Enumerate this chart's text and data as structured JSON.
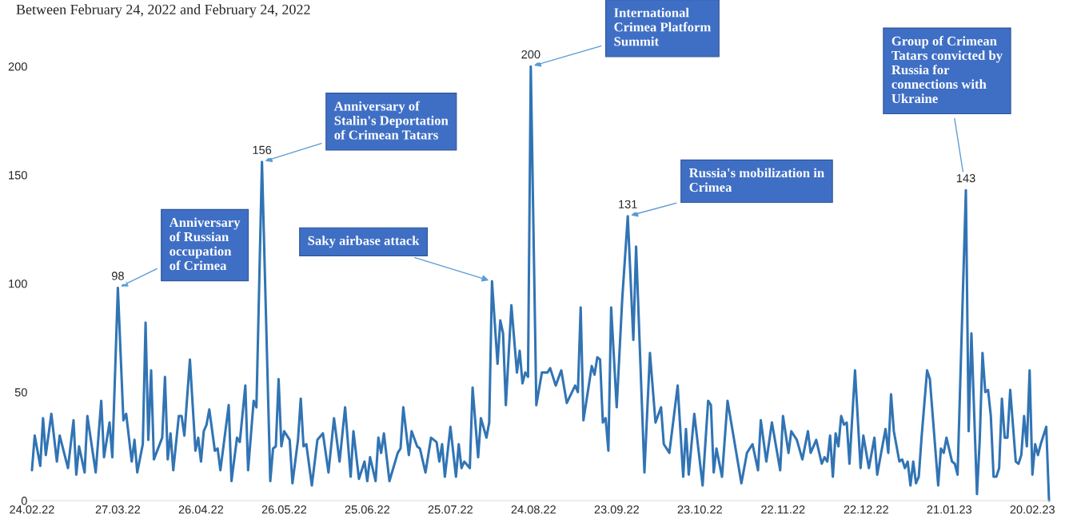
{
  "chart_data": {
    "type": "line",
    "title": "Between February 24, 2022 and February 24, 2022",
    "x": [
      "2022-02-24",
      "2022-02-25",
      "2022-02-27",
      "2022-02-28",
      "2022-03-01",
      "2022-03-03",
      "2022-03-05",
      "2022-03-06",
      "2022-03-09",
      "2022-03-11",
      "2022-03-12",
      "2022-03-13",
      "2022-03-15",
      "2022-03-16",
      "2022-03-19",
      "2022-03-21",
      "2022-03-22",
      "2022-03-24",
      "2022-03-25",
      "2022-03-27",
      "2022-03-29",
      "2022-03-30",
      "2022-04-01",
      "2022-04-02",
      "2022-04-03",
      "2022-04-05",
      "2022-04-06",
      "2022-04-07",
      "2022-04-08",
      "2022-04-09",
      "2022-04-12",
      "2022-04-13",
      "2022-04-14",
      "2022-04-15",
      "2022-04-16",
      "2022-04-18",
      "2022-04-19",
      "2022-04-20",
      "2022-04-22",
      "2022-04-24",
      "2022-04-25",
      "2022-04-26",
      "2022-04-27",
      "2022-04-28",
      "2022-04-29",
      "2022-05-01",
      "2022-05-02",
      "2022-05-03",
      "2022-05-06",
      "2022-05-07",
      "2022-05-09",
      "2022-05-10",
      "2022-05-12",
      "2022-05-13",
      "2022-05-15",
      "2022-05-16",
      "2022-05-18",
      "2022-05-21",
      "2022-05-22",
      "2022-05-23",
      "2022-05-24",
      "2022-05-25",
      "2022-05-26",
      "2022-05-28",
      "2022-05-29",
      "2022-05-31",
      "2022-06-01",
      "2022-06-02",
      "2022-06-03",
      "2022-06-05",
      "2022-06-07",
      "2022-06-09",
      "2022-06-11",
      "2022-06-13",
      "2022-06-15",
      "2022-06-17",
      "2022-06-19",
      "2022-06-20",
      "2022-06-22",
      "2022-06-24",
      "2022-06-25",
      "2022-06-26",
      "2022-06-28",
      "2022-06-29",
      "2022-06-30",
      "2022-07-01",
      "2022-07-03",
      "2022-07-06",
      "2022-07-07",
      "2022-07-08",
      "2022-07-10",
      "2022-07-11",
      "2022-07-13",
      "2022-07-14",
      "2022-07-16",
      "2022-07-18",
      "2022-07-20",
      "2022-07-21",
      "2022-07-22",
      "2022-07-23",
      "2022-07-25",
      "2022-07-27",
      "2022-07-28",
      "2022-07-29",
      "2022-07-30",
      "2022-08-01",
      "2022-08-02",
      "2022-08-04",
      "2022-08-05",
      "2022-08-07",
      "2022-08-08",
      "2022-08-09",
      "2022-08-11",
      "2022-08-12",
      "2022-08-13",
      "2022-08-14",
      "2022-08-16",
      "2022-08-18",
      "2022-08-19",
      "2022-08-20",
      "2022-08-21",
      "2022-08-22",
      "2022-08-23",
      "2022-08-25",
      "2022-08-27",
      "2022-08-29",
      "2022-08-30",
      "2022-09-01",
      "2022-09-03",
      "2022-09-05",
      "2022-09-08",
      "2022-09-09",
      "2022-09-10",
      "2022-09-11",
      "2022-09-14",
      "2022-09-15",
      "2022-09-16",
      "2022-09-17",
      "2022-09-18",
      "2022-09-19",
      "2022-09-20",
      "2022-09-21",
      "2022-09-23",
      "2022-09-25",
      "2022-09-27",
      "2022-09-29",
      "2022-09-30",
      "2022-10-03",
      "2022-10-05",
      "2022-10-07",
      "2022-10-09",
      "2022-10-10",
      "2022-10-12",
      "2022-10-15",
      "2022-10-17",
      "2022-10-18",
      "2022-10-19",
      "2022-10-21",
      "2022-10-24",
      "2022-10-26",
      "2022-10-27",
      "2022-10-28",
      "2022-10-29",
      "2022-10-31",
      "2022-11-02",
      "2022-11-07",
      "2022-11-09",
      "2022-11-11",
      "2022-11-13",
      "2022-11-14",
      "2022-11-16",
      "2022-11-18",
      "2022-11-21",
      "2022-11-22",
      "2022-11-24",
      "2022-11-25",
      "2022-11-27",
      "2022-11-29",
      "2022-12-01",
      "2022-12-02",
      "2022-12-04",
      "2022-12-06",
      "2022-12-07",
      "2022-12-08",
      "2022-12-09",
      "2022-12-10",
      "2022-12-11",
      "2022-12-12",
      "2022-12-13",
      "2022-12-14",
      "2022-12-15",
      "2022-12-16",
      "2022-12-18",
      "2022-12-20",
      "2022-12-21",
      "2022-12-23",
      "2022-12-25",
      "2022-12-26",
      "2022-12-29",
      "2022-12-30",
      "2022-12-31",
      "2023-01-01",
      "2023-01-03",
      "2023-01-04",
      "2023-01-05",
      "2023-01-06",
      "2023-01-07",
      "2023-01-08",
      "2023-01-09",
      "2023-01-10",
      "2023-01-11",
      "2023-01-13",
      "2023-01-14",
      "2023-01-17",
      "2023-01-18",
      "2023-01-19",
      "2023-01-20",
      "2023-01-22",
      "2023-01-23",
      "2023-01-24",
      "2023-01-27",
      "2023-01-28",
      "2023-01-29",
      "2023-01-31",
      "2023-02-01",
      "2023-02-02",
      "2023-02-03",
      "2023-02-04",
      "2023-02-05",
      "2023-02-06",
      "2023-02-07",
      "2023-02-08",
      "2023-02-09",
      "2023-02-10",
      "2023-02-11",
      "2023-02-12",
      "2023-02-14",
      "2023-02-15",
      "2023-02-16",
      "2023-02-17",
      "2023-02-18",
      "2023-02-19",
      "2023-02-20",
      "2023-02-21",
      "2023-02-22",
      "2023-02-23",
      "2023-02-25",
      "2023-02-26"
    ],
    "series": [
      {
        "color": "#3174b4",
        "values": [
          14,
          30,
          16,
          38,
          21,
          40,
          18,
          30,
          15,
          37,
          12,
          25,
          13,
          39,
          13,
          46,
          20,
          36,
          20,
          98,
          37,
          40,
          18,
          28,
          13,
          26,
          82,
          28,
          60,
          19,
          29,
          57,
          19,
          31,
          14,
          39,
          39,
          30,
          65,
          23,
          29,
          18,
          32,
          35,
          42,
          23,
          24,
          14,
          44,
          9,
          29,
          27,
          53,
          14,
          46,
          43,
          156,
          9,
          24,
          25,
          56,
          25,
          32,
          28,
          8,
          28,
          47,
          25,
          26,
          7,
          28,
          31,
          13,
          38,
          18,
          43,
          11,
          32,
          10,
          18,
          9,
          20,
          9,
          29,
          22,
          31,
          9,
          22,
          24,
          43,
          21,
          32,
          25,
          24,
          13,
          29,
          27,
          18,
          26,
          11,
          34,
          11,
          26,
          15,
          18,
          15,
          52,
          20,
          38,
          29,
          36,
          101,
          63,
          83,
          77,
          44,
          90,
          59,
          69,
          54,
          59,
          57,
          200,
          44,
          59,
          59,
          61,
          53,
          60,
          45,
          53,
          50,
          89,
          37,
          62,
          58,
          66,
          65,
          36,
          38,
          23,
          89,
          43,
          93,
          131,
          74,
          117,
          13,
          68,
          36,
          43,
          26,
          22,
          53,
          11,
          33,
          12,
          40,
          7,
          46,
          44,
          13,
          24,
          11,
          46,
          8,
          22,
          26,
          14,
          37,
          18,
          36,
          14,
          39,
          22,
          32,
          28,
          19,
          32,
          22,
          28,
          17,
          20,
          18,
          30,
          11,
          31,
          25,
          39,
          35,
          36,
          17,
          60,
          15,
          30,
          15,
          29,
          12,
          33,
          22,
          49,
          32,
          18,
          19,
          15,
          18,
          7,
          18,
          8,
          11,
          29,
          60,
          56,
          7,
          24,
          22,
          29,
          18,
          17,
          12,
          143,
          32,
          77,
          3,
          28,
          68,
          50,
          51,
          39,
          11,
          11,
          15,
          47,
          29,
          29,
          51,
          18,
          17,
          21,
          39,
          25,
          60,
          12,
          26,
          21,
          26,
          34,
          0
        ]
      }
    ],
    "xticks": [
      {
        "value": "2022-02-24",
        "label": "24.02.22"
      },
      {
        "value": "2022-03-27",
        "label": "27.03.22"
      },
      {
        "value": "2022-04-26",
        "label": "26.04.22"
      },
      {
        "value": "2022-05-26",
        "label": "26.05.22"
      },
      {
        "value": "2022-06-25",
        "label": "25.06.22"
      },
      {
        "value": "2022-07-25",
        "label": "25.07.22"
      },
      {
        "value": "2022-08-24",
        "label": "24.08.22"
      },
      {
        "value": "2022-09-23",
        "label": "23.09.22"
      },
      {
        "value": "2022-10-23",
        "label": "23.10.22"
      },
      {
        "value": "2022-11-22",
        "label": "22.11.22"
      },
      {
        "value": "2022-12-22",
        "label": "22.12.22"
      },
      {
        "value": "2023-01-21",
        "label": "21.01.23"
      },
      {
        "value": "2023-02-20",
        "label": "20.02.23"
      }
    ],
    "xlim": [
      "2022-02-24",
      "2023-02-26"
    ],
    "ylim": [
      0,
      200
    ],
    "yticks": [
      0,
      50,
      100,
      150,
      200
    ],
    "grid": false,
    "line_style": "solid",
    "annotations": [
      {
        "text": "Anniversary\nof Russian\noccupation\nof Crimea",
        "x": "2022-03-27",
        "y": 98
      },
      {
        "text": "98",
        "x": "2022-03-27",
        "y": 98
      },
      {
        "text": "Anniversary of\nStalin's Deportation\nof Crimean Tatars",
        "x": "2022-05-18",
        "y": 156
      },
      {
        "text": "156",
        "x": "2022-05-18",
        "y": 156
      },
      {
        "text": "Saky airbase attack",
        "x": "2022-08-09",
        "y": 101
      },
      {
        "text": "International\nCrimea Platform\nSummit",
        "x": "2022-08-23",
        "y": 200
      },
      {
        "text": "200",
        "x": "2022-08-23",
        "y": 200
      },
      {
        "text": "Russia's mobilization in\nCrimea",
        "x": "2022-09-27",
        "y": 131
      },
      {
        "text": "131",
        "x": "2022-09-27",
        "y": 131
      },
      {
        "text": "Group of Crimean\nTatars convicted by\nRussia for\nconnections with\nUkraine",
        "x": "2023-01-27",
        "y": 143
      },
      {
        "text": "143",
        "x": "2023-01-27",
        "y": 143
      }
    ]
  }
}
